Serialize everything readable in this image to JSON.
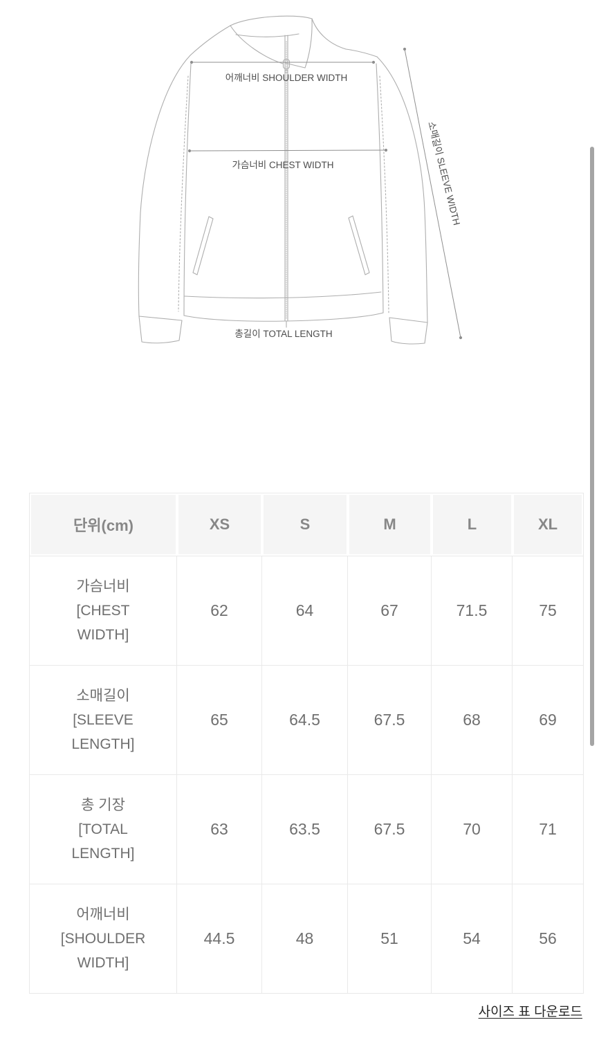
{
  "diagram": {
    "labels": {
      "shoulder": "어깨너비 SHOULDER WIDTH",
      "chest": "가슴너비 CHEST WIDTH",
      "sleeve": "소매길이 SLEEVE WIDTH",
      "total": "총길이 TOTAL LENGTH"
    }
  },
  "size_table": {
    "unit_header": "단위(cm)",
    "columns": [
      "XS",
      "S",
      "M",
      "L",
      "XL"
    ],
    "rows": [
      {
        "label": "가슴너비\n[CHEST\nWIDTH]",
        "values": [
          "62",
          "64",
          "67",
          "71.5",
          "75"
        ]
      },
      {
        "label": "소매길이\n[SLEEVE\nLENGTH]",
        "values": [
          "65",
          "64.5",
          "67.5",
          "68",
          "69"
        ]
      },
      {
        "label": "총 기장\n[TOTAL\nLENGTH]",
        "values": [
          "63",
          "63.5",
          "67.5",
          "70",
          "71"
        ]
      },
      {
        "label": "어깨너비\n[SHOULDER\nWIDTH]",
        "values": [
          "44.5",
          "48",
          "51",
          "54",
          "56"
        ]
      }
    ]
  },
  "footer": {
    "download_link": "사이즈 표 다운로드"
  },
  "colors": {
    "outline": "#adadad",
    "measure_line": "#8f8f8f",
    "diagram_text": "#4c4c4c",
    "table_border": "#e9e9e9",
    "header_bg": "#f5f5f5",
    "header_text": "#878787",
    "cell_text": "#6f6f6f",
    "link_text": "#262626",
    "scrollbar": "#a5a5a5"
  }
}
